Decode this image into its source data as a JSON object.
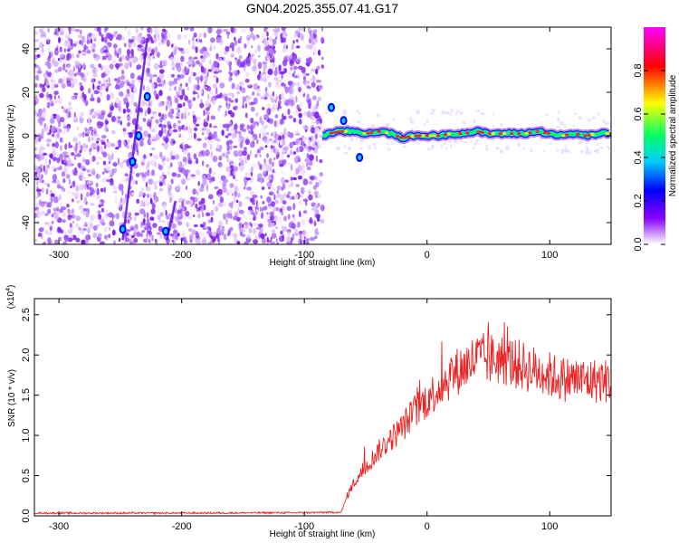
{
  "title": "GN04.2025.355.07.41.G17",
  "chart_data": [
    {
      "type": "heatmap",
      "panel": "spectrogram",
      "xlabel": "Height of straight line (km)",
      "ylabel": "Frequency (Hz)",
      "xlim": [
        -320,
        150
      ],
      "ylim": [
        -50,
        50
      ],
      "xticks": [
        -300,
        -200,
        -100,
        0,
        100
      ],
      "xtick_labels": [
        "-300",
        "-200",
        "-100",
        "0",
        "100"
      ],
      "yticks": [
        -40,
        -20,
        0,
        20,
        40
      ],
      "ytick_labels": [
        "-40",
        "-20",
        "0",
        "20",
        "40"
      ],
      "noise_region_x": [
        -320,
        -85
      ],
      "signal_track": {
        "x": [
          -85,
          -80,
          -70,
          -60,
          -50,
          -40,
          -30,
          -20,
          -10,
          0,
          10,
          20,
          30,
          40,
          50,
          60,
          70,
          80,
          90,
          100,
          110,
          120,
          130,
          140,
          150
        ],
        "freq_hz": [
          0,
          1,
          2,
          2,
          1,
          2,
          1,
          -1,
          0,
          0,
          0,
          1,
          1,
          2,
          1,
          1,
          1,
          1,
          2,
          1,
          0,
          1,
          0,
          1,
          1
        ]
      },
      "streak_points": [
        {
          "x": -78,
          "freq_hz": 13
        },
        {
          "x": -68,
          "freq_hz": 7
        },
        {
          "x": -55,
          "freq_hz": -10
        },
        {
          "x": -228,
          "freq_hz": 18
        },
        {
          "x": -235,
          "freq_hz": 0
        },
        {
          "x": -240,
          "freq_hz": -12
        },
        {
          "x": -248,
          "freq_hz": -43
        },
        {
          "x": -213,
          "freq_hz": -44
        }
      ],
      "colorbar": {
        "label": "Normalized spectral amplitude",
        "range": [
          0,
          1
        ],
        "ticks": [
          0.0,
          0.2,
          0.4,
          0.6,
          0.8
        ],
        "tick_labels": [
          "0.0",
          "0.2",
          "0.4",
          "0.6",
          "0.8"
        ],
        "colormap": [
          "#ffffff",
          "#8800ff",
          "#0000ff",
          "#00ccff",
          "#00ff66",
          "#ffff00",
          "#ff0000",
          "#ff00ff"
        ]
      }
    },
    {
      "type": "line",
      "panel": "snr",
      "xlabel": "Height of straight line (km)",
      "ylabel": "SNR (10 * v/v)",
      "y_scale_label": "(x10",
      "y_scale_exp": "4",
      "xlim": [
        -320,
        150
      ],
      "ylim": [
        0,
        27000
      ],
      "xticks": [
        -300,
        -200,
        -100,
        0,
        100
      ],
      "xtick_labels": [
        "-300",
        "-200",
        "-100",
        "0",
        "100"
      ],
      "yticks": [
        0,
        5000,
        10000,
        15000,
        20000,
        25000
      ],
      "ytick_labels": [
        "0.0",
        "0.5",
        "1.0",
        "1.5",
        "2.0",
        "2.5"
      ],
      "color": "#ee2222",
      "series": [
        {
          "x": [
            -320,
            -200,
            -100,
            -70,
            -65,
            -60,
            -50,
            -40,
            -30,
            -20,
            -10,
            0,
            10,
            20,
            30,
            40,
            50,
            60,
            70,
            80,
            90,
            100,
            110,
            120,
            130,
            140,
            150
          ],
          "y": [
            300,
            300,
            350,
            400,
            2500,
            4000,
            6000,
            8000,
            9500,
            11000,
            13000,
            14500,
            16000,
            17500,
            18500,
            19500,
            19500,
            19500,
            19000,
            18500,
            18000,
            17500,
            17000,
            17000,
            16800,
            16800,
            16800
          ]
        }
      ]
    }
  ]
}
